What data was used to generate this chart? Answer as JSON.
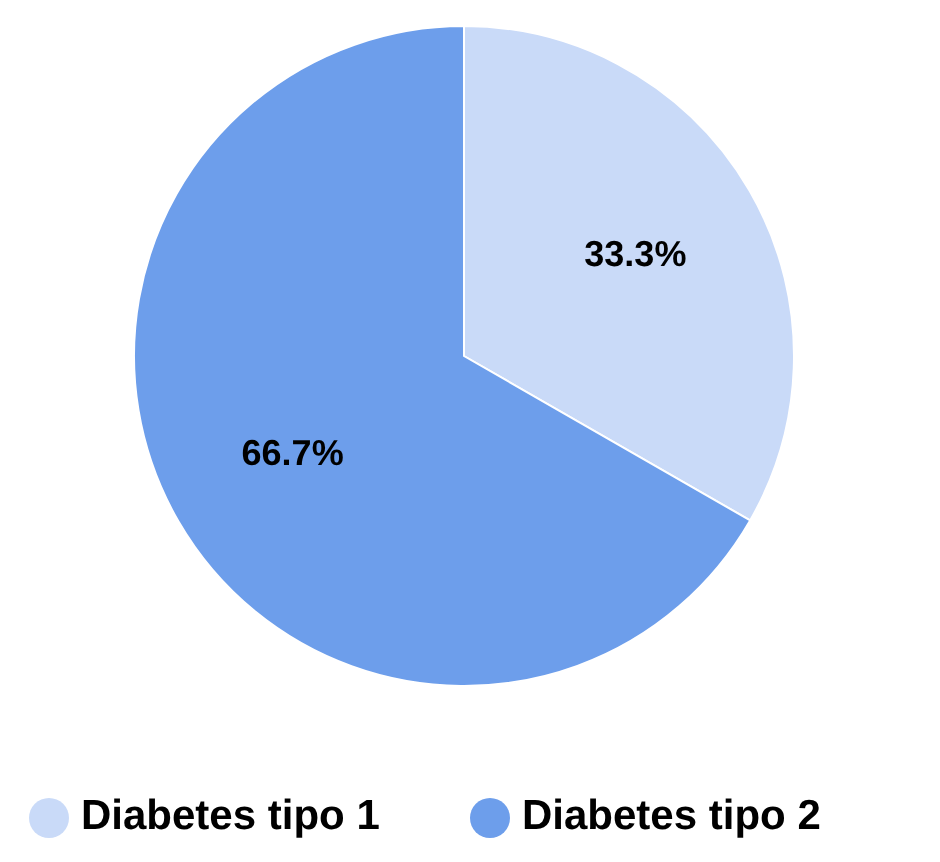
{
  "chart_data": {
    "type": "pie",
    "categories": [
      "Diabetes tipo 1",
      "Diabetes tipo 2"
    ],
    "values": [
      33.3,
      66.7
    ],
    "colors": [
      "#c9daf8",
      "#6d9eeb"
    ],
    "value_labels": [
      "33.3%",
      "66.7%"
    ],
    "legend": "bottom"
  }
}
